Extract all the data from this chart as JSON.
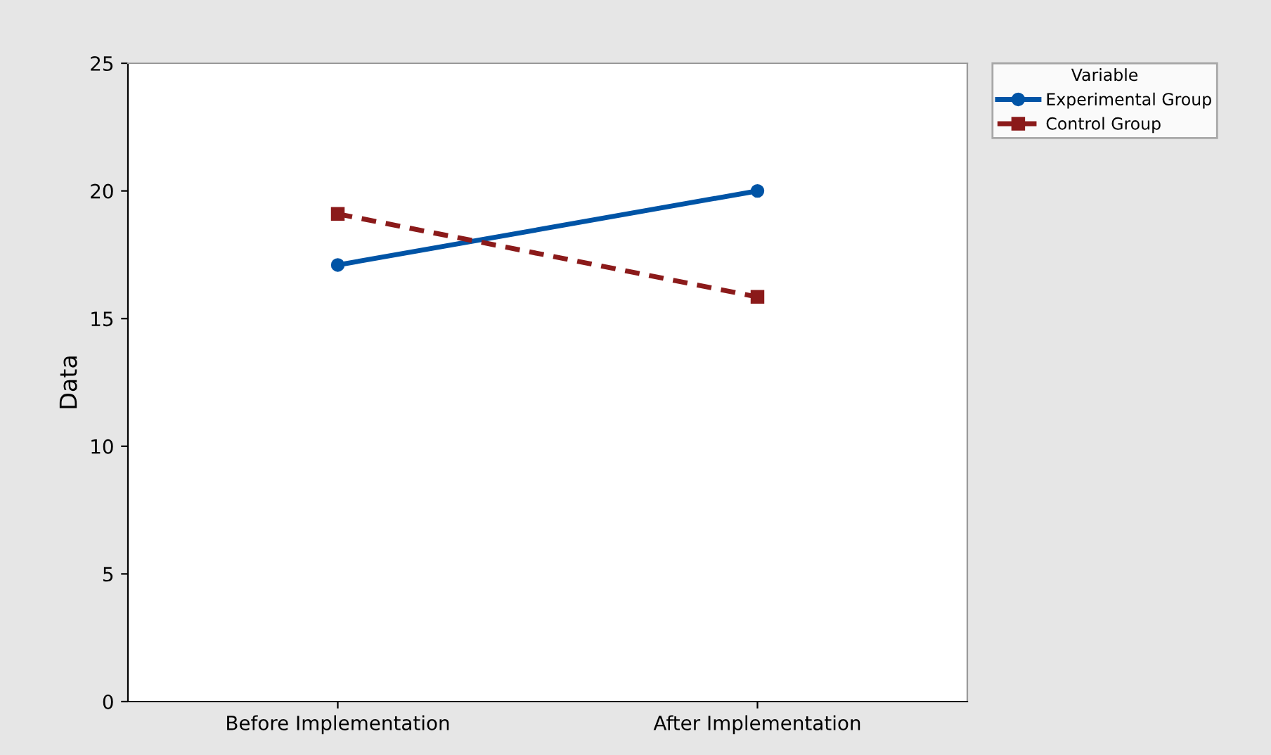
{
  "chart_data": {
    "type": "line",
    "ylabel": "Data",
    "legend_title": "Variable",
    "categories": [
      "Before Implementation",
      "After Implementation"
    ],
    "series": [
      {
        "name": "Experimental Group",
        "color": "#0054a6",
        "values": [
          17.1,
          20.0
        ],
        "marker": "circle",
        "line_style": "solid"
      },
      {
        "name": "Control Group",
        "color": "#8b1a1a",
        "values": [
          19.1,
          15.85
        ],
        "marker": "square",
        "line_style": "dashed"
      }
    ],
    "ylim": [
      0,
      25
    ],
    "yticks": [
      0,
      5,
      10,
      15,
      20,
      25
    ],
    "grid": false,
    "legend": "top right"
  }
}
